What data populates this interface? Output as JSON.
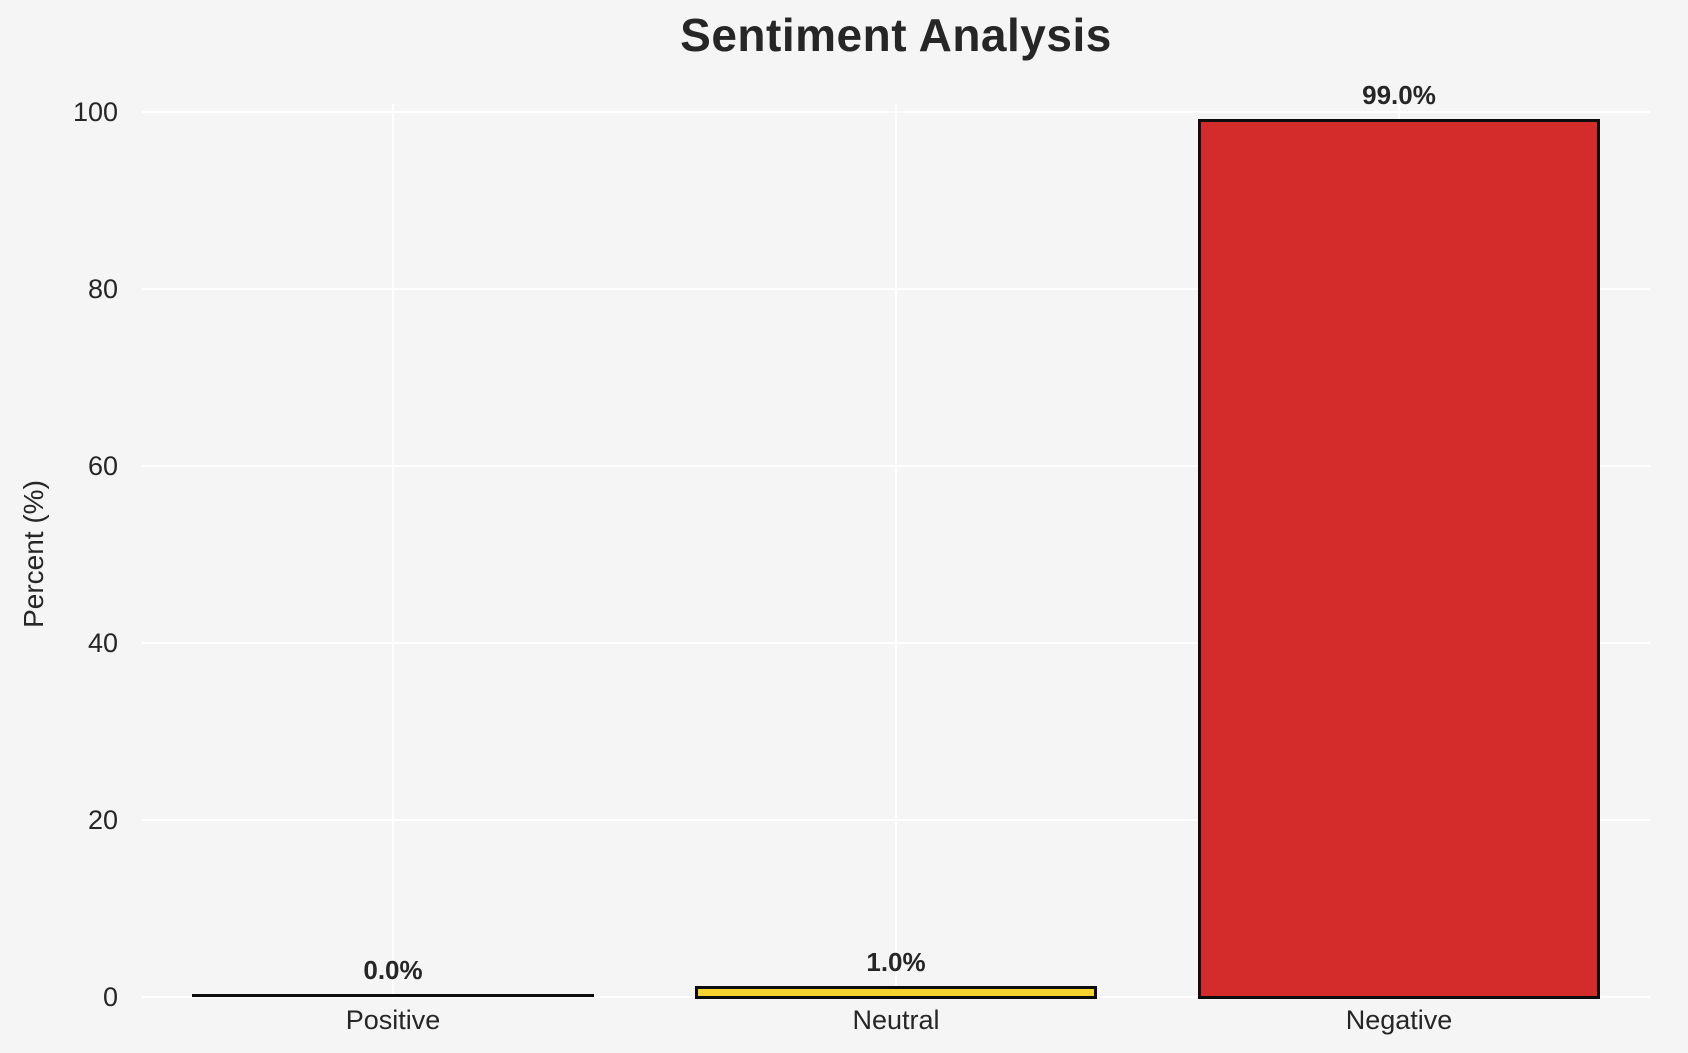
{
  "figure": {
    "title": "Sentiment Analysis",
    "ylabel": "Percent (%)"
  },
  "colors": {
    "figure_background": "#f5f5f6",
    "grid_color": "#ffffff",
    "text_color": "#262626",
    "bar_edge_color": "#0d0d0d",
    "neutral_bar_fill": "#f6d32e",
    "negative_bar_fill": "#d42b2b"
  },
  "chart_data": {
    "type": "bar",
    "title": "Sentiment Analysis",
    "xlabel": "",
    "ylabel": "Percent (%)",
    "categories": [
      "Positive",
      "Neutral",
      "Negative"
    ],
    "values": [
      0.0,
      1.0,
      99.0
    ],
    "bar_labels": [
      "0.0%",
      "1.0%",
      "99.0%"
    ],
    "bar_colors": [
      null,
      "#f6d32e",
      "#d42b2b"
    ],
    "ylim": [
      0,
      100
    ],
    "yticks": [
      0,
      20,
      40,
      60,
      80,
      100
    ],
    "ytick_labels": [
      "0",
      "20",
      "40",
      "60",
      "80",
      "100"
    ],
    "grid": true,
    "grid_orientation": "both",
    "legend_position": "none",
    "bar_width_fraction": 0.8
  }
}
